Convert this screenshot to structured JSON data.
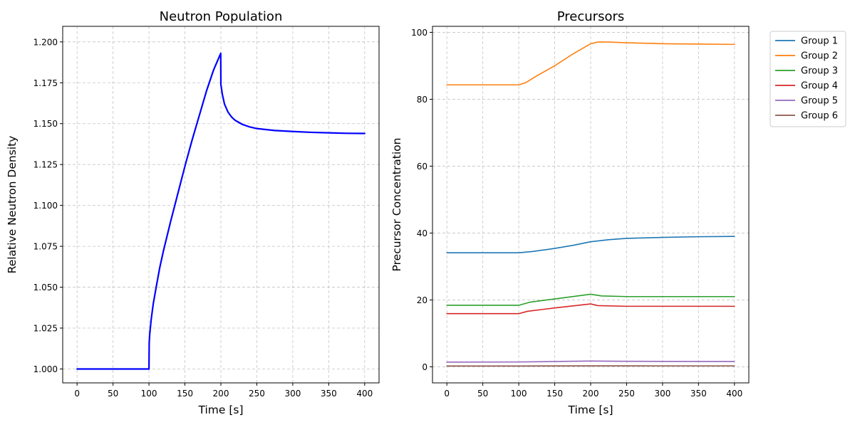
{
  "chart_data": [
    {
      "type": "line",
      "title": "Neutron Population",
      "xlabel": "Time [s]",
      "ylabel": "Relative Neutron Density",
      "xlim": [
        -20,
        420
      ],
      "ylim": [
        0.9915,
        1.2095
      ],
      "xticks": [
        0,
        50,
        100,
        150,
        200,
        250,
        300,
        350,
        400
      ],
      "xtick_labels": [
        "0",
        "50",
        "100",
        "150",
        "200",
        "250",
        "300",
        "350",
        "400"
      ],
      "yticks": [
        1.0,
        1.025,
        1.05,
        1.075,
        1.1,
        1.125,
        1.15,
        1.175,
        1.2
      ],
      "ytick_labels": [
        "1.000",
        "1.025",
        "1.050",
        "1.075",
        "1.100",
        "1.125",
        "1.150",
        "1.175",
        "1.200"
      ],
      "grid": true,
      "series": [
        {
          "color": "#0000ff",
          "points": [
            [
              0,
              1.0
            ],
            [
              50,
              1.0
            ],
            [
              99.9,
              1.0
            ],
            [
              100,
              1.0
            ],
            [
              100.3,
              1.016
            ],
            [
              101,
              1.021
            ],
            [
              103,
              1.03
            ],
            [
              106,
              1.04
            ],
            [
              110,
              1.05
            ],
            [
              115,
              1.062
            ],
            [
              120,
              1.072
            ],
            [
              130,
              1.09
            ],
            [
              140,
              1.107
            ],
            [
              150,
              1.124
            ],
            [
              160,
              1.14
            ],
            [
              170,
              1.155
            ],
            [
              180,
              1.17
            ],
            [
              190,
              1.183
            ],
            [
              199.8,
              1.193
            ],
            [
              200,
              1.174
            ],
            [
              202,
              1.168
            ],
            [
              205,
              1.162
            ],
            [
              210,
              1.157
            ],
            [
              215,
              1.154
            ],
            [
              220,
              1.152
            ],
            [
              230,
              1.1495
            ],
            [
              240,
              1.148
            ],
            [
              250,
              1.147
            ],
            [
              275,
              1.1458
            ],
            [
              300,
              1.1452
            ],
            [
              325,
              1.1447
            ],
            [
              350,
              1.1444
            ],
            [
              375,
              1.1441
            ],
            [
              400,
              1.144
            ]
          ]
        }
      ]
    },
    {
      "type": "line",
      "title": "Precursors",
      "xlabel": "Time [s]",
      "ylabel": "Precursor Concentration",
      "xlim": [
        -20,
        420
      ],
      "ylim": [
        -4.8,
        101.8
      ],
      "xticks": [
        0,
        50,
        100,
        150,
        200,
        250,
        300,
        350,
        400
      ],
      "xtick_labels": [
        "0",
        "50",
        "100",
        "150",
        "200",
        "250",
        "300",
        "350",
        "400"
      ],
      "yticks": [
        0,
        20,
        40,
        60,
        80,
        100
      ],
      "ytick_labels": [
        "0",
        "20",
        "40",
        "60",
        "80",
        "100"
      ],
      "grid": true,
      "legend": "outside-right-top",
      "series": [
        {
          "name": "Group 1",
          "color": "#1f77b4",
          "points": [
            [
              0,
              34.1
            ],
            [
              100,
              34.1
            ],
            [
              120,
              34.5
            ],
            [
              150,
              35.4
            ],
            [
              175,
              36.3
            ],
            [
              200,
              37.4
            ],
            [
              225,
              38.0
            ],
            [
              250,
              38.4
            ],
            [
              300,
              38.7
            ],
            [
              350,
              38.9
            ],
            [
              400,
              39.0
            ]
          ]
        },
        {
          "name": "Group 2",
          "color": "#ff7f0e",
          "points": [
            [
              0,
              84.3
            ],
            [
              100,
              84.3
            ],
            [
              110,
              85.0
            ],
            [
              125,
              87.0
            ],
            [
              150,
              90.0
            ],
            [
              175,
              93.5
            ],
            [
              200,
              96.6
            ],
            [
              210,
              97.1
            ],
            [
              225,
              97.1
            ],
            [
              250,
              96.9
            ],
            [
              300,
              96.6
            ],
            [
              350,
              96.5
            ],
            [
              400,
              96.4
            ]
          ]
        },
        {
          "name": "Group 3",
          "color": "#2ca02c",
          "points": [
            [
              0,
              18.4
            ],
            [
              100,
              18.4
            ],
            [
              115,
              19.3
            ],
            [
              150,
              20.3
            ],
            [
              200,
              21.7
            ],
            [
              215,
              21.2
            ],
            [
              250,
              21.0
            ],
            [
              300,
              21.0
            ],
            [
              350,
              21.0
            ],
            [
              400,
              21.0
            ]
          ]
        },
        {
          "name": "Group 4",
          "color": "#d62728",
          "points": [
            [
              0,
              15.9
            ],
            [
              100,
              15.9
            ],
            [
              112,
              16.6
            ],
            [
              150,
              17.6
            ],
            [
              200,
              18.8
            ],
            [
              210,
              18.3
            ],
            [
              250,
              18.1
            ],
            [
              300,
              18.1
            ],
            [
              400,
              18.1
            ]
          ]
        },
        {
          "name": "Group 5",
          "color": "#9467bd",
          "points": [
            [
              0,
              1.4
            ],
            [
              100,
              1.45
            ],
            [
              150,
              1.6
            ],
            [
              200,
              1.72
            ],
            [
              250,
              1.65
            ],
            [
              300,
              1.62
            ],
            [
              400,
              1.6
            ]
          ]
        },
        {
          "name": "Group 6",
          "color": "#8c564b",
          "points": [
            [
              0,
              0.25
            ],
            [
              100,
              0.25
            ],
            [
              200,
              0.3
            ],
            [
              300,
              0.28
            ],
            [
              400,
              0.28
            ]
          ]
        }
      ]
    }
  ]
}
